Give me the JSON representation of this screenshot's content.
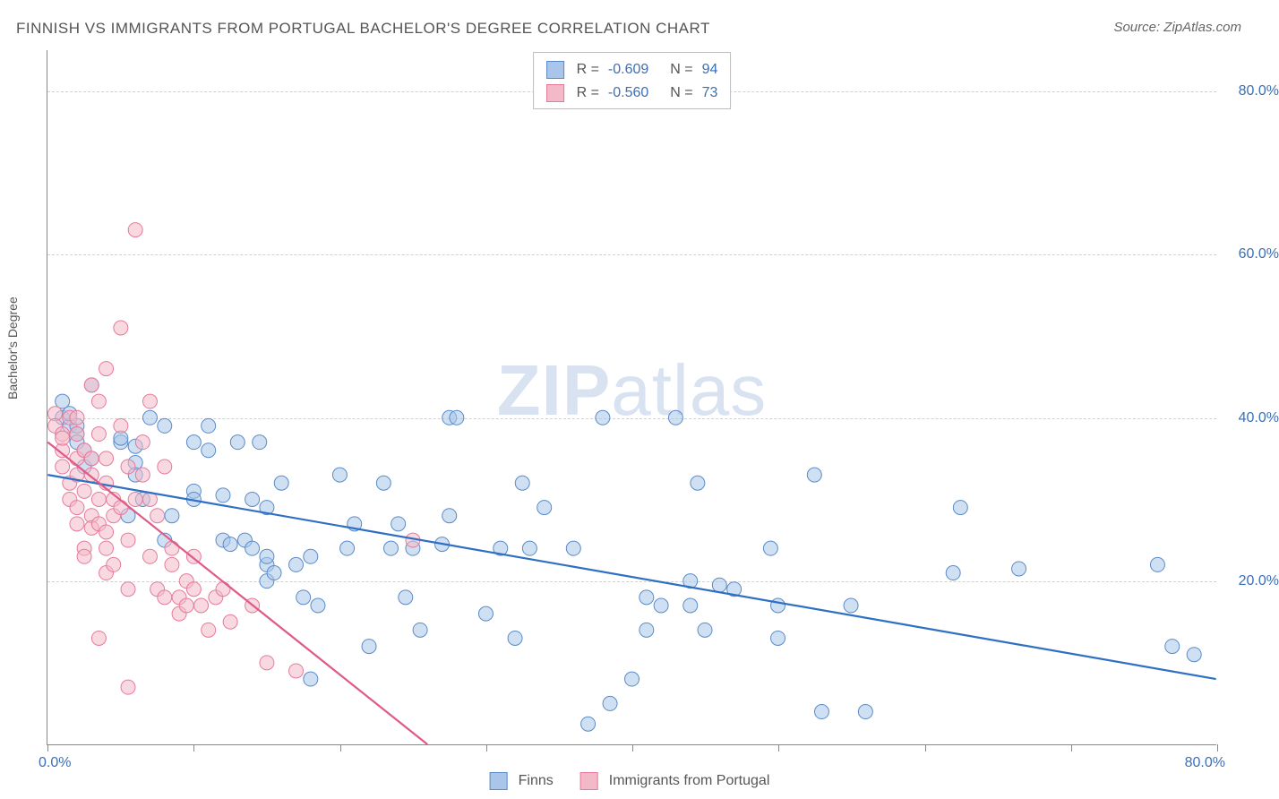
{
  "title": "FINNISH VS IMMIGRANTS FROM PORTUGAL BACHELOR'S DEGREE CORRELATION CHART",
  "source": "Source: ZipAtlas.com",
  "ylabel": "Bachelor's Degree",
  "watermark_zip": "ZIP",
  "watermark_atlas": "atlas",
  "chart": {
    "type": "scatter",
    "xlim": [
      0,
      80
    ],
    "ylim": [
      0,
      85
    ],
    "xlim_labels": [
      "0.0%",
      "80.0%"
    ],
    "ytick_values": [
      20,
      40,
      60,
      80
    ],
    "ytick_labels": [
      "20.0%",
      "40.0%",
      "60.0%",
      "80.0%"
    ],
    "xtick_values": [
      0,
      10,
      20,
      30,
      40,
      50,
      60,
      70,
      80
    ],
    "background_color": "#ffffff",
    "grid_color": "#d0d0d0",
    "axis_color": "#888888",
    "tick_label_color": "#3b6fb6",
    "marker_radius": 8,
    "marker_opacity": 0.55,
    "line_width": 2.2
  },
  "series": [
    {
      "name": "Finns",
      "fill": "#a9c6ea",
      "stroke": "#5a8bc9",
      "line_color": "#2e6fc4",
      "R": "-0.609",
      "N": "94",
      "regression": {
        "x1": 0,
        "y1": 33,
        "x2": 80,
        "y2": 8
      },
      "points": [
        [
          1,
          42
        ],
        [
          1,
          40
        ],
        [
          1.5,
          39
        ],
        [
          1.5,
          40.5
        ],
        [
          2,
          38
        ],
        [
          2,
          37
        ],
        [
          2,
          39
        ],
        [
          2.5,
          34
        ],
        [
          2.5,
          36
        ],
        [
          3,
          44
        ],
        [
          3,
          35
        ],
        [
          5,
          37
        ],
        [
          5,
          37.5
        ],
        [
          5.5,
          28
        ],
        [
          6,
          34.5
        ],
        [
          6,
          36.5
        ],
        [
          6,
          33
        ],
        [
          6.5,
          30
        ],
        [
          7,
          40
        ],
        [
          8,
          39
        ],
        [
          8,
          25
        ],
        [
          8.5,
          28
        ],
        [
          10,
          37
        ],
        [
          10,
          31
        ],
        [
          10,
          30
        ],
        [
          11,
          39
        ],
        [
          11,
          36
        ],
        [
          12,
          30.5
        ],
        [
          12,
          25
        ],
        [
          12.5,
          24.5
        ],
        [
          13,
          37
        ],
        [
          13.5,
          25
        ],
        [
          14,
          30
        ],
        [
          14,
          24
        ],
        [
          14.5,
          37
        ],
        [
          15,
          22
        ],
        [
          15,
          23
        ],
        [
          15,
          20
        ],
        [
          15,
          29
        ],
        [
          15.5,
          21
        ],
        [
          16,
          32
        ],
        [
          17,
          22
        ],
        [
          17.5,
          18
        ],
        [
          18,
          23
        ],
        [
          18,
          8
        ],
        [
          18.5,
          17
        ],
        [
          20,
          33
        ],
        [
          20.5,
          24
        ],
        [
          21,
          27
        ],
        [
          22,
          12
        ],
        [
          23,
          32
        ],
        [
          23.5,
          24
        ],
        [
          24,
          27
        ],
        [
          24.5,
          18
        ],
        [
          25,
          24
        ],
        [
          25.5,
          14
        ],
        [
          27,
          24.5
        ],
        [
          27.5,
          40
        ],
        [
          27.5,
          28
        ],
        [
          28,
          40
        ],
        [
          30,
          16
        ],
        [
          31,
          24
        ],
        [
          32,
          13
        ],
        [
          32.5,
          32
        ],
        [
          33,
          24
        ],
        [
          34,
          29
        ],
        [
          36,
          24
        ],
        [
          37,
          2.5
        ],
        [
          38,
          40
        ],
        [
          38.5,
          5
        ],
        [
          40,
          8
        ],
        [
          41,
          18
        ],
        [
          41,
          14
        ],
        [
          42,
          17
        ],
        [
          43,
          40
        ],
        [
          44,
          20
        ],
        [
          44,
          17
        ],
        [
          44.5,
          32
        ],
        [
          45,
          14
        ],
        [
          46,
          19.5
        ],
        [
          47,
          19
        ],
        [
          49.5,
          24
        ],
        [
          50,
          13
        ],
        [
          50,
          17
        ],
        [
          52.5,
          33
        ],
        [
          53,
          4
        ],
        [
          55,
          17
        ],
        [
          56,
          4
        ],
        [
          62,
          21
        ],
        [
          62.5,
          29
        ],
        [
          66.5,
          21.5
        ],
        [
          76,
          22
        ],
        [
          77,
          12
        ],
        [
          78.5,
          11
        ]
      ]
    },
    {
      "name": "Immigrants from Portugal",
      "fill": "#f3b9c8",
      "stroke": "#e77a9a",
      "line_color": "#e05a87",
      "R": "-0.560",
      "N": "73",
      "regression": {
        "x1": 0,
        "y1": 37,
        "x2": 26,
        "y2": 0
      },
      "points": [
        [
          0.5,
          40.5
        ],
        [
          0.5,
          39
        ],
        [
          1,
          38
        ],
        [
          1,
          36
        ],
        [
          1,
          34
        ],
        [
          1,
          37.5
        ],
        [
          1.5,
          40
        ],
        [
          1.5,
          32
        ],
        [
          1.5,
          30
        ],
        [
          2,
          40
        ],
        [
          2,
          38
        ],
        [
          2,
          35
        ],
        [
          2,
          33
        ],
        [
          2,
          29
        ],
        [
          2,
          27
        ],
        [
          2.5,
          36
        ],
        [
          2.5,
          31
        ],
        [
          2.5,
          24
        ],
        [
          2.5,
          23
        ],
        [
          3,
          44
        ],
        [
          3,
          35
        ],
        [
          3,
          33
        ],
        [
          3,
          28
        ],
        [
          3,
          26.5
        ],
        [
          3.5,
          42
        ],
        [
          3.5,
          30
        ],
        [
          3.5,
          38
        ],
        [
          3.5,
          27
        ],
        [
          3.5,
          13
        ],
        [
          4,
          46
        ],
        [
          4,
          35
        ],
        [
          4,
          32
        ],
        [
          4,
          26
        ],
        [
          4,
          24
        ],
        [
          4,
          21
        ],
        [
          4.5,
          30
        ],
        [
          4.5,
          28
        ],
        [
          4.5,
          22
        ],
        [
          5,
          51
        ],
        [
          5,
          39
        ],
        [
          5,
          29
        ],
        [
          5.5,
          34
        ],
        [
          5.5,
          25
        ],
        [
          5.5,
          19
        ],
        [
          5.5,
          7
        ],
        [
          6,
          63
        ],
        [
          6,
          30
        ],
        [
          6.5,
          37
        ],
        [
          6.5,
          33
        ],
        [
          7,
          42
        ],
        [
          7,
          30
        ],
        [
          7,
          23
        ],
        [
          7.5,
          28
        ],
        [
          7.5,
          19
        ],
        [
          8,
          34
        ],
        [
          8,
          18
        ],
        [
          8.5,
          22
        ],
        [
          8.5,
          24
        ],
        [
          9,
          18
        ],
        [
          9,
          16
        ],
        [
          9.5,
          20
        ],
        [
          9.5,
          17
        ],
        [
          10,
          23
        ],
        [
          10,
          19
        ],
        [
          10.5,
          17
        ],
        [
          11,
          14
        ],
        [
          11.5,
          18
        ],
        [
          12,
          19
        ],
        [
          12.5,
          15
        ],
        [
          14,
          17
        ],
        [
          15,
          10
        ],
        [
          17,
          9
        ],
        [
          25,
          25
        ]
      ]
    }
  ],
  "legend_bottom": [
    {
      "label": "Finns",
      "fill": "#a9c6ea",
      "stroke": "#5a8bc9"
    },
    {
      "label": "Immigrants from Portugal",
      "fill": "#f3b9c8",
      "stroke": "#e77a9a"
    }
  ]
}
